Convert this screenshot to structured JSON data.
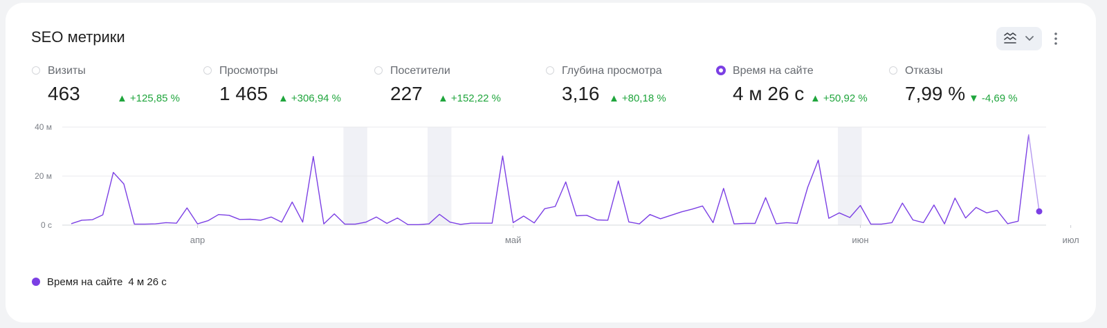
{
  "title": "SEO метрики",
  "accent": "#7b3fe4",
  "metrics": [
    {
      "label": "Визиты",
      "value": "463",
      "delta": "+125,85 %",
      "trend": "up",
      "selected": false
    },
    {
      "label": "Просмотры",
      "value": "1 465",
      "delta": "+306,94 %",
      "trend": "up",
      "selected": false
    },
    {
      "label": "Посетители",
      "value": "227",
      "delta": "+152,22 %",
      "trend": "up",
      "selected": false
    },
    {
      "label": "Глубина просмотра",
      "value": "3,16",
      "delta": "+80,18 %",
      "trend": "up",
      "selected": false
    },
    {
      "label": "Время на сайте",
      "value": "4 м 26 с",
      "delta": "+50,92 %",
      "trend": "up",
      "selected": true
    },
    {
      "label": "Отказы",
      "value": "7,99 %",
      "delta": "-4,69 %",
      "trend": "down",
      "selected": false
    }
  ],
  "legend": {
    "label": "Время на сайте",
    "value": "4 м 26 с"
  },
  "icons": {
    "view_switch": "chart-type-icon",
    "dropdown": "chevron-down-icon",
    "more": "more-vertical-icon"
  },
  "chart_data": {
    "type": "line",
    "y_ticks": [
      "0 с",
      "20 м",
      "40 м"
    ],
    "ylim": [
      0,
      40
    ],
    "x_ticks": [
      {
        "label": "апр",
        "index": 12
      },
      {
        "label": "май",
        "index": 42
      },
      {
        "label": "июн",
        "index": 75
      },
      {
        "label": "июл",
        "index": 95
      }
    ],
    "weekend_bands": [
      [
        26,
        28
      ],
      [
        34,
        36
      ],
      [
        73,
        75
      ]
    ],
    "grid": true,
    "series": [
      {
        "name": "Время на сайте",
        "values": [
          0.6,
          2.0,
          2.2,
          4.2,
          21.5,
          16.8,
          0.4,
          0.4,
          0.5,
          1.0,
          0.8,
          7.0,
          0.5,
          1.8,
          4.3,
          4.0,
          2.3,
          2.4,
          2.0,
          3.3,
          1.2,
          9.4,
          1.2,
          28.0,
          0.5,
          4.6,
          0.4,
          0.4,
          1.2,
          3.3,
          0.7,
          2.9,
          0.2,
          0.2,
          0.5,
          4.4,
          1.2,
          0.3,
          0.8,
          0.8,
          0.8,
          28.2,
          1.0,
          3.7,
          0.9,
          6.7,
          7.6,
          17.6,
          3.8,
          4.0,
          2.1,
          2.0,
          18.0,
          1.3,
          0.5,
          4.3,
          2.6,
          4.0,
          5.4,
          6.5,
          7.8,
          1.0,
          15.0,
          0.5,
          0.7,
          0.7,
          11.2,
          0.6,
          1.0,
          0.7,
          15.5,
          26.5,
          2.8,
          5.0,
          3.1,
          8.0,
          0.4,
          0.4,
          1.0,
          9.0,
          2.1,
          1.0,
          8.2,
          0.5,
          11.0,
          2.9,
          7.2,
          5.0,
          6.0,
          0.6,
          1.6,
          37.0,
          5.6
        ],
        "incomplete_last": true
      }
    ]
  }
}
